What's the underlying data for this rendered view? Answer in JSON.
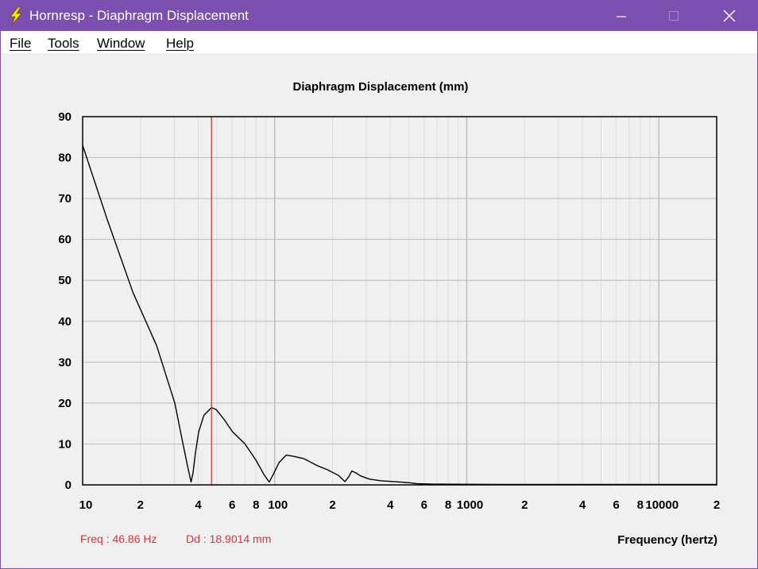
{
  "window": {
    "title": "Hornresp - Diaphragm Displacement",
    "title_color": "#7a4fb0"
  },
  "menu": {
    "file": "File",
    "tools": "Tools",
    "window": "Window",
    "help": "Help"
  },
  "chart_data": {
    "type": "line",
    "title": "Diaphragm Displacement (mm)",
    "xlabel": "Frequency (hertz)",
    "ylabel": "",
    "xscale": "log",
    "xlim": [
      10,
      20000
    ],
    "ylim": [
      0,
      90
    ],
    "grid": true,
    "y_ticks": [
      0,
      10,
      20,
      30,
      40,
      50,
      60,
      70,
      80,
      90
    ],
    "x_tick_labels": [
      {
        "value": 10,
        "label": "10"
      },
      {
        "value": 20,
        "label": "2"
      },
      {
        "value": 40,
        "label": "4"
      },
      {
        "value": 60,
        "label": "6"
      },
      {
        "value": 80,
        "label": "8"
      },
      {
        "value": 100,
        "label": "100"
      },
      {
        "value": 200,
        "label": "2"
      },
      {
        "value": 400,
        "label": "4"
      },
      {
        "value": 600,
        "label": "6"
      },
      {
        "value": 800,
        "label": "8"
      },
      {
        "value": 1000,
        "label": "1000"
      },
      {
        "value": 2000,
        "label": "2"
      },
      {
        "value": 4000,
        "label": "4"
      },
      {
        "value": 6000,
        "label": "6"
      },
      {
        "value": 8000,
        "label": "8"
      },
      {
        "value": 10000,
        "label": "10000"
      },
      {
        "value": 20000,
        "label": "2"
      }
    ],
    "series": [
      {
        "color": "#000000",
        "x": [
          10,
          13.4,
          18.3,
          24.3,
          30.2,
          33.3,
          35.4,
          36.7,
          37.6,
          38.7,
          40.2,
          42.8,
          46.86,
          49.6,
          54.5,
          60.3,
          70,
          80,
          88,
          93.6,
          98.2,
          105.5,
          115,
          125,
          142,
          165,
          188,
          215,
          232,
          243,
          252,
          265,
          280,
          312,
          357,
          420,
          510,
          550,
          650,
          900,
          1500,
          3000,
          6000,
          12000,
          20000
        ],
        "y": [
          83,
          65,
          47,
          34,
          20,
          10,
          4,
          0.7,
          3,
          8,
          13,
          17,
          18.9,
          18.4,
          16,
          13,
          10,
          6,
          2.5,
          0.7,
          2.5,
          5.5,
          7.3,
          7,
          6.4,
          4.8,
          3.7,
          2.3,
          0.8,
          2.0,
          3.4,
          2.9,
          2.2,
          1.4,
          1.0,
          0.8,
          0.5,
          0.3,
          0.2,
          0.15,
          0.1,
          0.1,
          0.1,
          0.1,
          0.1
        ]
      }
    ],
    "marker": {
      "x": 46.86,
      "color": "#e03030"
    }
  },
  "readout": {
    "freq": "Freq : 46.86 Hz",
    "dd": "Dd : 18.9014 mm",
    "color": "#e03030"
  }
}
